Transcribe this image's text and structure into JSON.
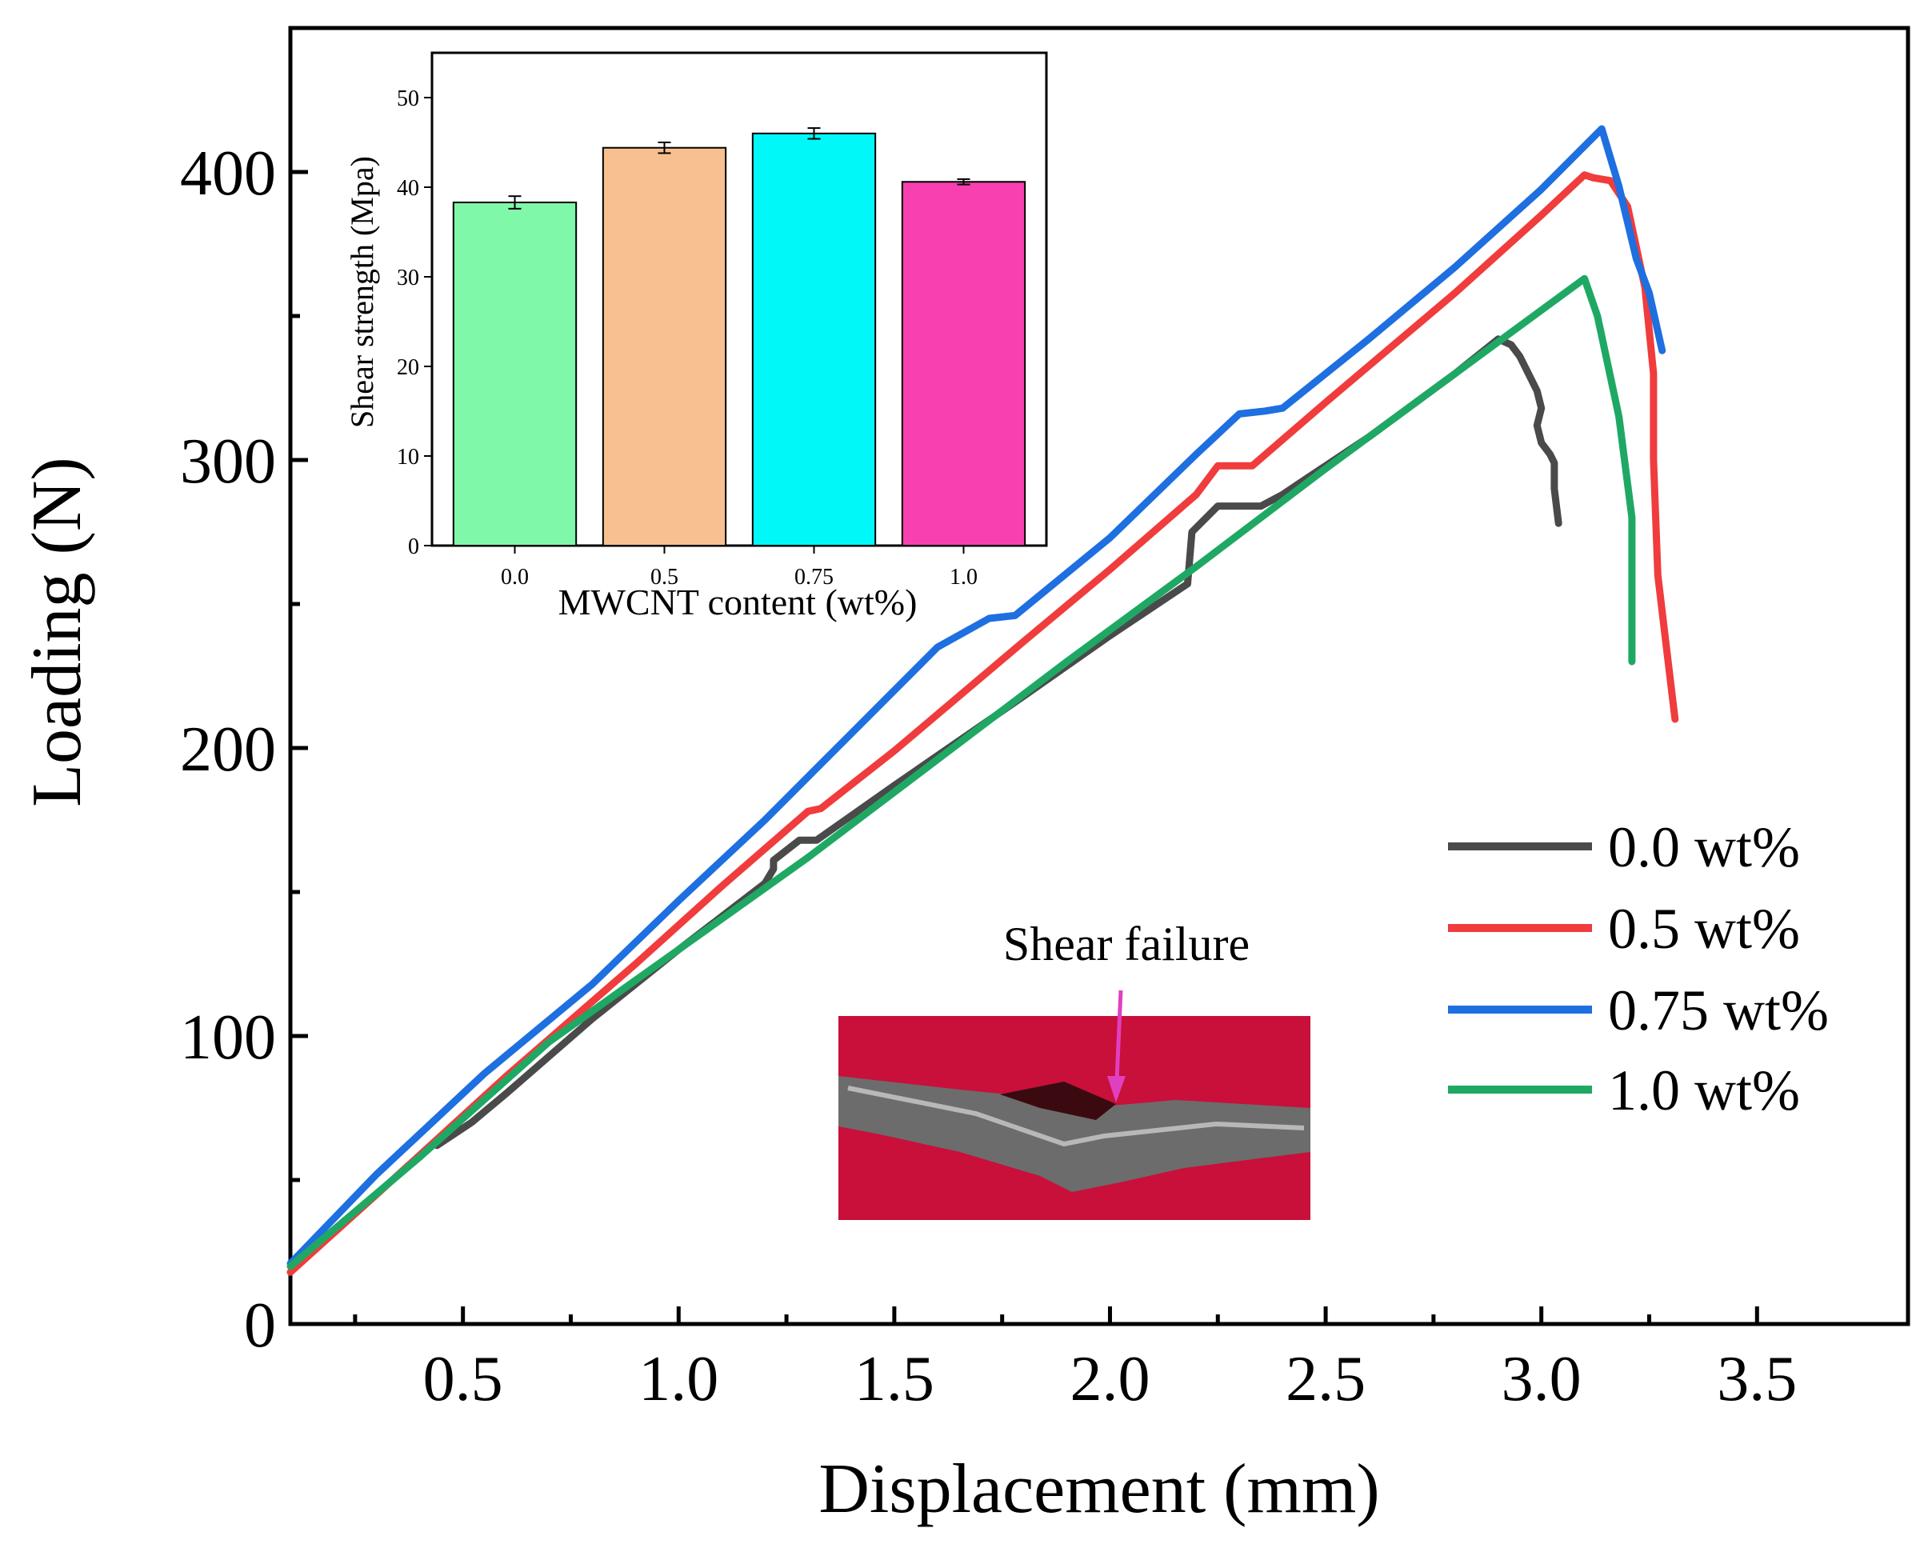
{
  "chart_data": [
    {
      "type": "line",
      "xlabel": "Displacement (mm)",
      "ylabel": "Loading (N)",
      "xlim": [
        0.1,
        3.85
      ],
      "ylim": [
        0,
        450
      ],
      "xticks": [
        0.5,
        1.0,
        1.5,
        2.0,
        2.5,
        3.0,
        3.5
      ],
      "yticks": [
        0,
        100,
        200,
        300,
        400
      ],
      "xtick_labels": [
        "0.5",
        "1.0",
        "1.5",
        "2.0",
        "2.5",
        "3.0",
        "3.5"
      ],
      "ytick_labels": [
        "0",
        "100",
        "200",
        "300",
        "400"
      ],
      "grid": false,
      "legend_position": "right",
      "series": [
        {
          "name": "0.0 wt%",
          "color": "#4a4a4a",
          "points": [
            [
              0.44,
              62
            ],
            [
              0.52,
              70
            ],
            [
              0.6,
              80
            ],
            [
              0.8,
              106
            ],
            [
              1.0,
              130
            ],
            [
              1.2,
              153
            ],
            [
              1.22,
              158
            ],
            [
              1.22,
              161
            ],
            [
              1.28,
              168
            ],
            [
              1.32,
              168
            ],
            [
              1.5,
              187
            ],
            [
              1.8,
              218
            ],
            [
              2.0,
              239
            ],
            [
              2.18,
              257
            ],
            [
              2.19,
              275
            ],
            [
              2.25,
              284
            ],
            [
              2.35,
              284
            ],
            [
              2.4,
              288
            ],
            [
              2.44,
              292
            ],
            [
              2.6,
              308
            ],
            [
              2.8,
              330
            ],
            [
              2.9,
              342
            ],
            [
              2.93,
              340
            ],
            [
              2.95,
              336
            ],
            [
              2.97,
              330
            ],
            [
              2.99,
              324
            ],
            [
              3.0,
              318
            ],
            [
              2.99,
              312
            ],
            [
              3.0,
              306
            ],
            [
              3.02,
              302
            ],
            [
              3.03,
              299
            ],
            [
              3.03,
              290
            ],
            [
              3.04,
              278
            ]
          ]
        },
        {
          "name": "0.5 wt%",
          "color": "#f03c3c",
          "points": [
            [
              0.1,
              18
            ],
            [
              0.3,
              45
            ],
            [
              0.6,
              86
            ],
            [
              0.9,
              125
            ],
            [
              1.1,
              152
            ],
            [
              1.3,
              178
            ],
            [
              1.33,
              179
            ],
            [
              1.5,
              199
            ],
            [
              1.8,
              237
            ],
            [
              2.0,
              262
            ],
            [
              2.2,
              288
            ],
            [
              2.25,
              298
            ],
            [
              2.33,
              298
            ],
            [
              2.5,
              320
            ],
            [
              2.8,
              358
            ],
            [
              3.0,
              385
            ],
            [
              3.1,
              399
            ],
            [
              3.12,
              398
            ],
            [
              3.16,
              397
            ],
            [
              3.2,
              388
            ],
            [
              3.24,
              360
            ],
            [
              3.26,
              330
            ],
            [
              3.26,
              300
            ],
            [
              3.27,
              260
            ],
            [
              3.29,
              235
            ],
            [
              3.31,
              210
            ]
          ]
        },
        {
          "name": "0.75 wt%",
          "color": "#1e6fe0",
          "points": [
            [
              0.1,
              21
            ],
            [
              0.3,
              52
            ],
            [
              0.55,
              87
            ],
            [
              0.8,
              118
            ],
            [
              1.0,
              147
            ],
            [
              1.2,
              175
            ],
            [
              1.4,
              205
            ],
            [
              1.6,
              235
            ],
            [
              1.72,
              245
            ],
            [
              1.78,
              246
            ],
            [
              2.0,
              273
            ],
            [
              2.2,
              302
            ],
            [
              2.3,
              316
            ],
            [
              2.36,
              317
            ],
            [
              2.4,
              318
            ],
            [
              2.6,
              342
            ],
            [
              2.8,
              367
            ],
            [
              3.0,
              394
            ],
            [
              3.14,
              415
            ],
            [
              3.18,
              395
            ],
            [
              3.22,
              370
            ],
            [
              3.25,
              358
            ],
            [
              3.28,
              338
            ]
          ]
        },
        {
          "name": "1.0 wt%",
          "color": "#1fa864",
          "points": [
            [
              0.1,
              20
            ],
            [
              0.4,
              58
            ],
            [
              0.7,
              98
            ],
            [
              1.0,
              130
            ],
            [
              1.3,
              162
            ],
            [
              1.6,
              196
            ],
            [
              1.9,
              230
            ],
            [
              2.2,
              263
            ],
            [
              2.5,
              297
            ],
            [
              2.8,
              330
            ],
            [
              3.1,
              363
            ],
            [
              3.13,
              350
            ],
            [
              3.18,
              315
            ],
            [
              3.21,
              280
            ],
            [
              3.21,
              230
            ]
          ]
        }
      ]
    },
    {
      "type": "bar",
      "xlabel": "MWCNT content (wt%)",
      "ylabel": "Shear strength (Mpa)",
      "ylim": [
        0,
        55
      ],
      "yticks": [
        0,
        10,
        20,
        30,
        40,
        50
      ],
      "ytick_labels": [
        "0",
        "10",
        "20",
        "30",
        "40",
        "50"
      ],
      "categories": [
        "0.0",
        "0.5",
        "0.75",
        "1.0"
      ],
      "values": [
        38.3,
        44.4,
        46.0,
        40.6
      ],
      "errors": [
        0.7,
        0.6,
        0.6,
        0.3
      ],
      "colors": [
        "#80f8aa",
        "#f8c090",
        "#00f8f8",
        "#f840b0"
      ],
      "grid": false
    }
  ],
  "annotation": {
    "label": "Shear failure",
    "arrow_color": "#e040c0"
  },
  "photo": {
    "background_color": "#c8103a",
    "sample_color": "#707070"
  }
}
